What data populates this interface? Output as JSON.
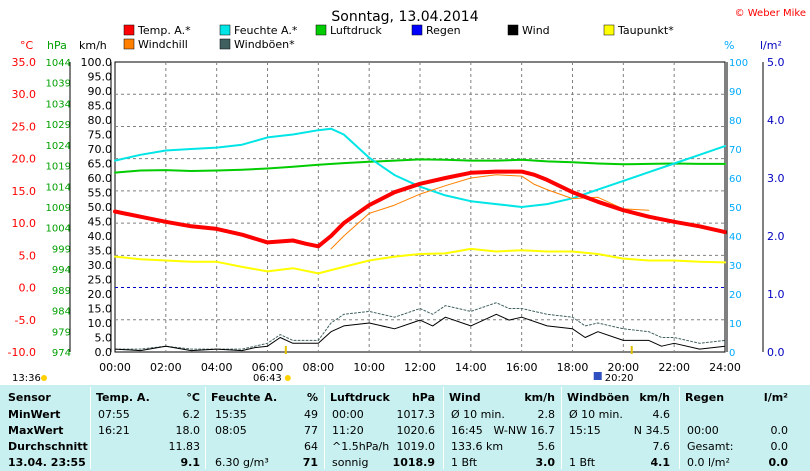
{
  "chart_data": {
    "type": "line",
    "title": "Sonntag, 13.04.2014",
    "copyright": "© Weber Mike",
    "xaxis": {
      "ticks": [
        "00:00",
        "02:00",
        "04:00",
        "06:00",
        "08:00",
        "10:00",
        "12:00",
        "14:00",
        "16:00",
        "18:00",
        "20:00",
        "22:00",
        "24:00"
      ],
      "range_hours": [
        0,
        24
      ]
    },
    "axes": {
      "temp": {
        "label": "°C",
        "range": [
          -10,
          35
        ],
        "ticks": [
          "35.0",
          "30.0",
          "25.0",
          "20.0",
          "15.0",
          "10.0",
          "5.0",
          "0.0",
          "-5.0",
          "-10.0"
        ],
        "color": "#ff0000"
      },
      "press": {
        "label": "hPa",
        "range": [
          974,
          1044
        ],
        "ticks": [
          "1044",
          "1039",
          "1034",
          "1029",
          "1024",
          "1019",
          "1014",
          "1009",
          "1004",
          "999",
          "994",
          "989",
          "984",
          "979",
          "974"
        ],
        "color": "#00a000"
      },
      "wind": {
        "label": "km/h",
        "range": [
          0,
          100
        ],
        "ticks": [
          "100.0",
          "95.0",
          "90.0",
          "85.0",
          "80.0",
          "75.0",
          "70.0",
          "65.0",
          "60.0",
          "55.0",
          "50.0",
          "45.0",
          "40.0",
          "35.0",
          "30.0",
          "25.0",
          "20.0",
          "15.0",
          "10.0",
          "5.0",
          "0.0"
        ],
        "color": "#000000"
      },
      "hum": {
        "label": "%",
        "range": [
          0,
          100
        ],
        "ticks": [
          "100",
          "90",
          "80",
          "70",
          "60",
          "50",
          "40",
          "30",
          "20",
          "10",
          "0"
        ],
        "color": "#00aaff"
      },
      "rain": {
        "label": "l/m²",
        "range": [
          0,
          5
        ],
        "ticks": [
          "5.0",
          "4.0",
          "3.0",
          "2.0",
          "1.0",
          "0.0"
        ],
        "color": "#0000c0"
      }
    },
    "legend": [
      {
        "name": "Temp. A.*",
        "color": "#ff0000"
      },
      {
        "name": "Feuchte A.*",
        "color": "#00e5e5"
      },
      {
        "name": "Luftdruck",
        "color": "#00cc00"
      },
      {
        "name": "Regen",
        "color": "#0000ff"
      },
      {
        "name": "Wind",
        "color": "#000000"
      },
      {
        "name": "Taupunkt*",
        "color": "#ffff00"
      },
      {
        "name": "Windchill",
        "color": "#ff8000"
      },
      {
        "name": "Windböen*",
        "color": "#406060"
      }
    ],
    "series": [
      {
        "name": "Temp. A.*",
        "axis": "temp",
        "color": "#ff0000",
        "x": [
          0,
          1,
          2,
          3,
          4,
          5,
          6,
          7,
          7.5,
          8,
          8.5,
          9,
          10,
          11,
          12,
          13,
          14,
          15,
          16,
          16.5,
          17,
          18,
          19,
          20,
          21,
          22,
          23,
          24
        ],
        "y": [
          11.8,
          11.0,
          10.2,
          9.5,
          9.1,
          8.2,
          7.0,
          7.3,
          6.8,
          6.4,
          8.0,
          10.0,
          12.8,
          14.8,
          16.1,
          17.0,
          17.8,
          18.0,
          18.0,
          17.5,
          16.7,
          14.8,
          13.3,
          12.0,
          11.0,
          10.2,
          9.5,
          8.6
        ]
      },
      {
        "name": "Windchill",
        "axis": "temp",
        "color": "#ff8000",
        "x": [
          8.5,
          9,
          10,
          11,
          12,
          13,
          14,
          15,
          16,
          16.5,
          17,
          18,
          19,
          20,
          21
        ],
        "y": [
          6.0,
          8.0,
          11.5,
          12.8,
          14.5,
          15.8,
          17.0,
          17.5,
          17.3,
          16.0,
          15.2,
          13.8,
          14.0,
          12.2,
          12.0
        ]
      },
      {
        "name": "Feuchte A.*",
        "axis": "hum",
        "color": "#00e5e5",
        "x": [
          0,
          1,
          2,
          3,
          4,
          5,
          6,
          7,
          8,
          8.5,
          9,
          10,
          11,
          12,
          13,
          14,
          15,
          16,
          17,
          18,
          19,
          20,
          21,
          22,
          23,
          24
        ],
        "y": [
          66,
          68,
          69.5,
          70,
          70.5,
          71.5,
          74,
          75,
          76.5,
          77,
          75,
          67,
          61,
          57,
          54,
          52,
          51,
          50,
          51,
          53,
          56,
          59,
          62,
          65,
          68,
          71
        ]
      },
      {
        "name": "Luftdruck",
        "axis": "press",
        "color": "#00cc00",
        "x": [
          0,
          1,
          2,
          3,
          4,
          5,
          6,
          7,
          8,
          9,
          10,
          11,
          12,
          13,
          14,
          15,
          16,
          17,
          18,
          19,
          20,
          21,
          22,
          23,
          24
        ],
        "y": [
          1017.3,
          1017.8,
          1017.9,
          1017.7,
          1017.8,
          1018.0,
          1018.3,
          1018.7,
          1019.2,
          1019.6,
          1019.9,
          1020.2,
          1020.5,
          1020.4,
          1020.2,
          1020.2,
          1020.4,
          1020.0,
          1019.8,
          1019.5,
          1019.3,
          1019.4,
          1019.5,
          1019.4,
          1019.4
        ]
      },
      {
        "name": "Taupunkt*",
        "axis": "temp",
        "color": "#ffff00",
        "x": [
          0,
          1,
          2,
          3,
          4,
          5,
          6,
          7,
          8,
          9,
          10,
          11,
          12,
          13,
          14,
          15,
          16,
          17,
          18,
          19,
          20,
          21,
          22,
          23,
          24
        ],
        "y": [
          4.8,
          4.4,
          4.2,
          4.0,
          4.0,
          3.2,
          2.5,
          3.0,
          2.2,
          3.2,
          4.2,
          4.8,
          5.2,
          5.3,
          6.0,
          5.6,
          5.8,
          5.6,
          5.6,
          5.2,
          4.5,
          4.2,
          4.2,
          4.0,
          3.9
        ]
      },
      {
        "name": "Wind",
        "axis": "wind",
        "color": "#000000",
        "x": [
          0,
          1,
          2,
          3,
          4,
          5,
          5.5,
          6,
          6.5,
          7,
          8,
          8.5,
          9,
          10,
          11,
          12,
          12.5,
          13,
          14,
          15,
          15.5,
          16,
          17,
          18,
          18.5,
          19,
          20,
          21,
          21.5,
          22,
          23,
          24
        ],
        "y": [
          1,
          0.5,
          2,
          0.5,
          1,
          0.5,
          1.5,
          2,
          5,
          3,
          3,
          7,
          9,
          10,
          8,
          11,
          9,
          12,
          9,
          13,
          11,
          12,
          9,
          8,
          5,
          7,
          4,
          4,
          2,
          3,
          1,
          2
        ]
      },
      {
        "name": "Windböen*",
        "axis": "wind",
        "color": "#406060",
        "x": [
          0,
          1,
          2,
          3,
          4,
          5,
          6,
          6.5,
          7,
          8,
          8.5,
          9,
          10,
          11,
          12,
          12.5,
          13,
          14,
          15,
          15.5,
          16,
          17,
          18,
          18.5,
          19,
          20,
          21,
          21.5,
          22,
          23,
          24
        ],
        "y": [
          1,
          1,
          2,
          1,
          1,
          1,
          3,
          6,
          4,
          4,
          10,
          13,
          14,
          12,
          15,
          13,
          16,
          14,
          17,
          15,
          15,
          13,
          12,
          9,
          10,
          8,
          7,
          5,
          5,
          3,
          4
        ]
      }
    ],
    "reference_lines": [
      {
        "axis": "temp",
        "value": 0,
        "color": "#0000c0",
        "style": "dashed"
      }
    ],
    "sun": {
      "sunrise": "06:43",
      "sunset": "20:20"
    },
    "sunrise_h": 6.72,
    "sunset_h": 20.33,
    "left_marker": "13:36"
  },
  "table": {
    "headers": {
      "sensor": "Sensor",
      "temp": "Temp. A.",
      "temp_unit": "°C",
      "hum": "Feuchte A.",
      "hum_unit": "%",
      "press": "Luftdruck",
      "press_unit": "hPa",
      "wind": "Wind",
      "wind_unit": "km/h",
      "gust": "Windböen",
      "gust_unit": "km/h",
      "rain": "Regen",
      "rain_unit": "l/m²"
    },
    "rows": [
      {
        "label": "MinWert",
        "temp_time": "07:55",
        "temp_val": "6.2",
        "hum_time": "15:35",
        "hum_val": "49",
        "press_time": "00:00",
        "press_val": "1017.3",
        "wind_desc": "Ø 10 min.",
        "wind_val": "2.8",
        "gust_desc": "Ø 10 min.",
        "gust_val": "4.6",
        "rain_desc": "",
        "rain_val": ""
      },
      {
        "label": "MaxWert",
        "temp_time": "16:21",
        "temp_val": "18.0",
        "hum_time": "08:05",
        "hum_val": "77",
        "press_time": "11:20",
        "press_val": "1020.6",
        "wind_desc": "16:45",
        "wind_dir": "W-NW 16.7",
        "wind_val": "",
        "gust_desc": "15:15",
        "gust_dir": "N 34.5",
        "gust_val": "",
        "rain_desc": "00:00",
        "rain_val": "0.0"
      },
      {
        "label": "Durchschnitt",
        "temp_time": "",
        "temp_val": "11.83",
        "hum_time": "",
        "hum_val": "64",
        "press_time": "^1.5hPa/h",
        "press_val": "1019.0",
        "wind_desc": "133.6 km",
        "wind_val": "5.6",
        "gust_desc": "",
        "gust_val": "7.6",
        "rain_desc": "Gesamt:",
        "rain_val": "0.0"
      },
      {
        "label": "13.04. 23:55",
        "temp_time": "",
        "temp_val": "9.1",
        "hum_time": "6.30 g/m³",
        "hum_val": "71",
        "press_time": "sonnig",
        "press_val": "1018.9",
        "wind_desc": "1 Bft",
        "wind_val": "3.0",
        "gust_desc": "1 Bft",
        "gust_val": "4.1",
        "rain_desc": "0.0 l/m²",
        "rain_val": "0.0"
      }
    ]
  }
}
